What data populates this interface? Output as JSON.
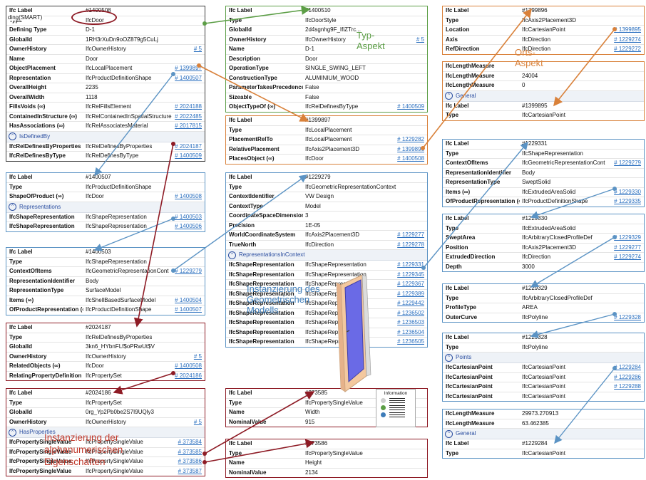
{
  "colors": {
    "green": "#5c9e46",
    "orange": "#d9813a",
    "blue": "#5b93c4",
    "red": "#8e1b25",
    "link": "#2a6fbf"
  },
  "cards": {
    "door": {
      "rows": [
        [
          "Ifc Label",
          "#1400508",
          ""
        ],
        [
          "Type",
          "IfcDoor",
          ""
        ],
        [
          "Defining Type",
          "D-1",
          ""
        ],
        [
          "GlobalId",
          "1RH3rXuDn9oOZ879g5CuLj",
          ""
        ],
        [
          "OwnerHistory",
          "IfcOwnerHistory",
          "# 5"
        ],
        [
          "Name",
          "Door",
          ""
        ],
        [
          "ObjectPlacement",
          "IfcLocalPlacement",
          "# 1399897"
        ],
        [
          "Representation",
          "IfcProductDefinitionShape",
          "# 1400507"
        ],
        [
          "OverallHeight",
          "2235",
          ""
        ],
        [
          "OverallWidth",
          "1118",
          ""
        ],
        [
          "FillsVoids (∞)",
          "IfcRelFillsElement",
          "# 2024188"
        ],
        [
          "ContainedInStructure (∞)",
          "IfcRelContainedInSpatialStructure",
          "# 2022485"
        ],
        [
          "HasAssociations (∞)",
          "IfcRelAssociatesMaterial",
          "# 2017815"
        ]
      ],
      "section": "IsDefinedBy",
      "rows2": [
        [
          "IfcRelDefinesByProperties",
          "IfcRelDefinesByProperties",
          "# 2024187"
        ],
        [
          "IfcRelDefinesByType",
          "IfcRelDefinesByType",
          "# 1400509"
        ]
      ],
      "overlay": "ding(SMART)"
    },
    "doorstyle": {
      "rows": [
        [
          "Ifc Label",
          "#1400510",
          ""
        ],
        [
          "Type",
          "IfcDoorStyle",
          ""
        ],
        [
          "GlobalId",
          "2d4sgnhg9F_IfiZTrc...",
          ""
        ],
        [
          "OwnerHistory",
          "IfcOwnerHistory",
          "# 5"
        ],
        [
          "Name",
          "D-1",
          ""
        ],
        [
          "Description",
          "Door",
          ""
        ],
        [
          "OperationType",
          "SINGLE_SWING_LEFT",
          ""
        ],
        [
          "ConstructionType",
          "ALUMINIUM_WOOD",
          ""
        ],
        [
          "ParameterTakesPrecedence",
          "False",
          ""
        ],
        [
          "Sizeable",
          "False",
          ""
        ],
        [
          "ObjectTypeOf (∞)",
          "IfcRelDefinesByType",
          "# 1400509"
        ]
      ]
    },
    "axis3d": {
      "rows": [
        [
          "Ifc Label",
          "#1399896",
          ""
        ],
        [
          "Type",
          "IfcAxis2Placement3D",
          ""
        ],
        [
          "Location",
          "IfcCartesianPoint",
          "# 1399895"
        ],
        [
          "Axis",
          "IfcDirection",
          "# 1229274"
        ],
        [
          "RefDirection",
          "IfcDirection",
          "# 1229272"
        ]
      ]
    },
    "cartpoint1": {
      "rows": [
        [
          "IfcLengthMeasure",
          "",
          ""
        ],
        [
          "IfcLengthMeasure",
          "24004",
          ""
        ],
        [
          "IfcLengthMeasure",
          "0",
          ""
        ]
      ],
      "section": "General",
      "rows2": [
        [
          "Ifc Label",
          "#1399895",
          ""
        ],
        [
          "Type",
          "IfcCartesianPoint",
          ""
        ]
      ]
    },
    "localplacement": {
      "rows": [
        [
          "Ifc Label",
          "#1399897",
          ""
        ],
        [
          "Type",
          "IfcLocalPlacement",
          ""
        ],
        [
          "PlacementRelTo",
          "IfcLocalPlacement",
          "# 1229282"
        ],
        [
          "RelativePlacement",
          "IfcAxis2Placement3D",
          "# 1399896"
        ],
        [
          "PlacesObject (∞)",
          "IfcDoor",
          "# 1400508"
        ]
      ]
    },
    "pds": {
      "rows": [
        [
          "Ifc Label",
          "#1400507",
          ""
        ],
        [
          "Type",
          "IfcProductDefinitionShape",
          ""
        ],
        [
          "ShapeOfProduct (∞)",
          "IfcDoor",
          "# 1400508"
        ]
      ],
      "section": "Representations",
      "rows2": [
        [
          "IfcShapeRepresentation",
          "IfcShapeRepresentation",
          "# 1400503"
        ],
        [
          "IfcShapeRepresentation",
          "IfcShapeRepresentation",
          "# 1400506"
        ]
      ]
    },
    "grc": {
      "rows": [
        [
          "Ifc Label",
          "#1229279",
          ""
        ],
        [
          "Type",
          "IfcGeometricRepresentationContext",
          ""
        ],
        [
          "ContextIdentifier",
          "VW Design",
          ""
        ],
        [
          "ContextType",
          "Model",
          ""
        ],
        [
          "CoordinateSpaceDimension",
          "3",
          ""
        ],
        [
          "Precision",
          "1E-05",
          ""
        ],
        [
          "WorldCoordinateSystem",
          "IfcAxis2Placement3D",
          "# 1229277"
        ],
        [
          "TrueNorth",
          "IfcDirection",
          "# 1229278"
        ]
      ],
      "section": "RepresentationsInContext",
      "rows2": [
        [
          "IfcShapeRepresentation",
          "IfcShapeRepresentation",
          "# 1229331"
        ],
        [
          "IfcShapeRepresentation",
          "IfcShapeRepresentation",
          "# 1229345"
        ],
        [
          "IfcShapeRepresentation",
          "IfcShapeRepresentation",
          "# 1229367"
        ],
        [
          "IfcShapeRepresentation",
          "IfcShapeRepresentation",
          "# 1229389"
        ],
        [
          "IfcShapeRepresentation",
          "IfcShapeRepresentation",
          "# 1229442"
        ],
        [
          "IfcShapeRepresentation",
          "IfcShapeRepresentation",
          "# 1236502"
        ],
        [
          "IfcShapeRepresentation",
          "IfcShapeRepresentation",
          "# 1236503"
        ],
        [
          "IfcShapeRepresentation",
          "IfcShapeRepresentation",
          "# 1236504"
        ],
        [
          "IfcShapeRepresentation",
          "IfcShapeRepresentation",
          "# 1236505"
        ]
      ]
    },
    "shaperep1": {
      "rows": [
        [
          "Ifc Label",
          "#1229331",
          ""
        ],
        [
          "Type",
          "IfcShapeRepresentation",
          ""
        ],
        [
          "ContextOfItems",
          "IfcGeometricRepresentationCont",
          "# 1229279"
        ],
        [
          "RepresentationIdentifier",
          "Body",
          ""
        ],
        [
          "RepresentationType",
          "SweptSolid",
          ""
        ],
        [
          "Items (∞)",
          "IfcExtrudedAreaSolid",
          "# 1229330"
        ],
        [
          "OfProductRepresentation (∞)",
          "IfcProductDefinitionShape",
          "# 1229335"
        ]
      ]
    },
    "shaperep2": {
      "rows": [
        [
          "Ifc Label",
          "#1400503",
          ""
        ],
        [
          "Type",
          "IfcShapeRepresentation",
          ""
        ],
        [
          "ContextOfItems",
          "IfcGeometricRepresentationCont",
          "# 1229279"
        ],
        [
          "RepresentationIdentifier",
          "Body",
          ""
        ],
        [
          "RepresentationType",
          "SurfaceModel",
          ""
        ],
        [
          "Items (∞)",
          "IfcShellBasedSurfaceModel",
          "# 1400504"
        ],
        [
          "OfProductRepresentation (∞)",
          "IfcProductDefinitionShape",
          "# 1400507"
        ]
      ]
    },
    "extruded": {
      "rows": [
        [
          "Ifc Label",
          "#1229330",
          ""
        ],
        [
          "Type",
          "IfcExtrudedAreaSolid",
          ""
        ],
        [
          "SweptArea",
          "IfcArbitraryClosedProfileDef",
          "# 1229329"
        ],
        [
          "Position",
          "IfcAxis2Placement3D",
          "# 1229277"
        ],
        [
          "ExtrudedDirection",
          "IfcDirection",
          "# 1229274"
        ],
        [
          "Depth",
          "3000",
          ""
        ]
      ]
    },
    "profile": {
      "rows": [
        [
          "Ifc Label",
          "#1229329",
          ""
        ],
        [
          "Type",
          "IfcArbitraryClosedProfileDef",
          ""
        ],
        [
          "ProfileType",
          "AREA",
          ""
        ],
        [
          "OuterCurve",
          "IfcPolyline",
          "# 1229328"
        ]
      ]
    },
    "polyline": {
      "rows": [
        [
          "Ifc Label",
          "#1229328",
          ""
        ],
        [
          "Type",
          "IfcPolyline",
          ""
        ]
      ],
      "section": "Points",
      "rows2": [
        [
          "IfcCartesianPoint",
          "IfcCartesianPoint",
          "# 1229284"
        ],
        [
          "IfcCartesianPoint",
          "IfcCartesianPoint",
          "# 1229286"
        ],
        [
          "IfcCartesianPoint",
          "IfcCartesianPoint",
          "# 1229288"
        ],
        [
          "IfcCartesianPoint",
          "IfcCartesianPoint",
          ""
        ]
      ]
    },
    "cartpoint2": {
      "rows": [
        [
          "IfcLengthMeasure",
          "29973.270913",
          ""
        ],
        [
          "IfcLengthMeasure",
          "63.462385",
          ""
        ]
      ],
      "section": "General",
      "rows2": [
        [
          "Ifc Label",
          "#1229284",
          ""
        ],
        [
          "Type",
          "IfcCartesianPoint",
          ""
        ]
      ]
    },
    "reldefprops": {
      "rows": [
        [
          "Ifc Label",
          "#2024187",
          ""
        ],
        [
          "Type",
          "IfcRelDefinesByProperties",
          ""
        ],
        [
          "GlobalId",
          "3kn6_HYbnFLf$oPRwUt$V",
          ""
        ],
        [
          "OwnerHistory",
          "IfcOwnerHistory",
          "# 5"
        ],
        [
          "RelatedObjects (∞)",
          "IfcDoor",
          "# 1400508"
        ],
        [
          "RelatingPropertyDefinition",
          "IfcPropertySet",
          "# 2024186"
        ]
      ]
    },
    "propset": {
      "rows": [
        [
          "Ifc Label",
          "#2024186",
          ""
        ],
        [
          "Type",
          "IfcPropertySet",
          ""
        ],
        [
          "GlobalId",
          "0rg_Yp2Pb0be2S7I9UQly3",
          ""
        ],
        [
          "OwnerHistory",
          "IfcOwnerHistory",
          "# 5"
        ]
      ],
      "section": "HasProperties",
      "rows2": [
        [
          "IfcPropertySingleValue",
          "IfcPropertySingleValue",
          "# 373584"
        ],
        [
          "IfcPropertySingleValue",
          "IfcPropertySingleValue",
          "# 373585"
        ],
        [
          "IfcPropertySingleValue",
          "IfcPropertySingleValue",
          "# 373586"
        ],
        [
          "IfcPropertySingleValue",
          "IfcPropertySingleValue",
          "# 373587"
        ]
      ]
    },
    "psv1": {
      "rows": [
        [
          "Ifc Label",
          "#373585",
          ""
        ],
        [
          "Type",
          "IfcPropertySingleValue",
          ""
        ],
        [
          "Name",
          "Width",
          ""
        ],
        [
          "NominalValue",
          "915",
          ""
        ]
      ]
    },
    "psv2": {
      "rows": [
        [
          "Ifc Label",
          "#373586",
          ""
        ],
        [
          "Type",
          "IfcPropertySingleValue",
          ""
        ],
        [
          "Name",
          "Height",
          ""
        ],
        [
          "NominalValue",
          "2134",
          ""
        ]
      ]
    }
  },
  "notes": {
    "typ": "Typ-\nAspekt",
    "orts": "Orts-\nAspekt",
    "geom": "Instanzierung des\nGeometrischen\nModells",
    "alpha": "Instanzierung der\nalphanumerischen\nEigenschaften"
  },
  "legend": {
    "title": "Information",
    "dots": [
      "#cfcfcf",
      "#5c9e46",
      "#4a4a4a",
      "#3d7cb9"
    ]
  }
}
